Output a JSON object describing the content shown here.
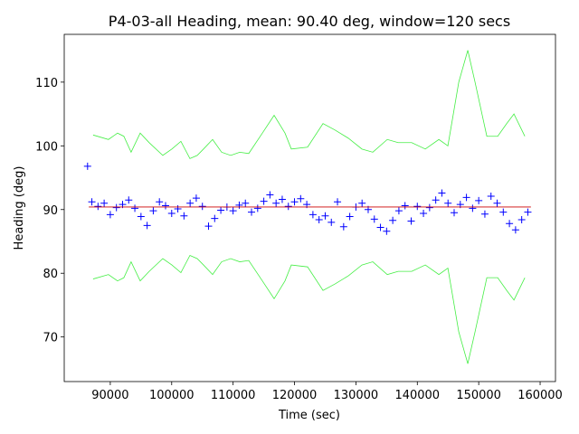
{
  "chart_data": {
    "type": "scatter",
    "title": "P4-03-all Heading, mean: 90.40 deg, window=120 secs",
    "xlabel": "Time (sec)",
    "ylabel": "Heading (deg)",
    "xlim": [
      82500,
      162500
    ],
    "ylim": [
      63,
      117.5
    ],
    "xticks": [
      90000,
      100000,
      110000,
      120000,
      130000,
      140000,
      150000,
      160000
    ],
    "yticks": [
      70,
      80,
      90,
      100,
      110
    ],
    "grid": false,
    "series": [
      {
        "style": "plus",
        "color": "#0000ff",
        "x": [
          86300,
          87000,
          88000,
          89000,
          90000,
          91000,
          92000,
          93000,
          94000,
          95000,
          96000,
          97000,
          98000,
          99000,
          100000,
          101000,
          102000,
          103000,
          104000,
          105000,
          106000,
          107000,
          108000,
          109000,
          110000,
          111000,
          112000,
          113000,
          114000,
          115000,
          116000,
          117000,
          118000,
          119000,
          120000,
          121000,
          122000,
          123000,
          124000,
          125000,
          126000,
          127000,
          128000,
          129000,
          130000,
          131000,
          132000,
          133000,
          134000,
          135000,
          136000,
          137000,
          138000,
          139000,
          140000,
          141000,
          142000,
          143000,
          144000,
          145000,
          146000,
          147000,
          148000,
          149000,
          150000,
          151000,
          152000,
          153000,
          154000,
          155000,
          156000,
          157000,
          158000
        ],
        "values": [
          96.8,
          91.2,
          90.5,
          91.0,
          89.2,
          90.3,
          90.8,
          91.5,
          90.2,
          88.9,
          87.5,
          89.8,
          91.2,
          90.6,
          89.4,
          90.1,
          89.0,
          91.0,
          91.8,
          90.5,
          87.4,
          88.6,
          89.9,
          90.4,
          89.8,
          90.7,
          91.0,
          89.6,
          90.2,
          91.3,
          92.3,
          91.0,
          91.6,
          90.5,
          91.2,
          91.7,
          90.8,
          89.2,
          88.4,
          89.0,
          88.0,
          91.2,
          87.3,
          88.9,
          90.4,
          91.0,
          90.0,
          88.5,
          87.2,
          86.6,
          88.3,
          89.8,
          90.6,
          88.2,
          90.5,
          89.4,
          90.3,
          91.5,
          92.6,
          91.0,
          89.5,
          90.8,
          91.9,
          90.2,
          91.4,
          89.3,
          92.1,
          91.0,
          89.6,
          87.8,
          86.8,
          88.4,
          89.6
        ]
      },
      {
        "style": "line",
        "color": "#cc0000",
        "x": [
          86500,
          158500
        ],
        "values": [
          90.4,
          90.4
        ]
      },
      {
        "style": "line",
        "color": "#44ee44",
        "x": [
          87200,
          89700,
          91180,
          92210,
          93390,
          94870,
          96340,
          98550,
          100030,
          101500,
          102970,
          104150,
          105180,
          106660,
          108130,
          109610,
          111080,
          112550,
          114770,
          116680,
          118450,
          119480,
          122130,
          124640,
          126560,
          128770,
          130980,
          132750,
          135110,
          136880,
          139090,
          141300,
          143510,
          144980,
          146750,
          148220,
          149400,
          151320,
          153090,
          154560,
          155740,
          157510
        ],
        "values": [
          101.7,
          101.0,
          102.0,
          101.5,
          99.0,
          102.0,
          100.5,
          98.5,
          99.5,
          100.7,
          98.0,
          98.5,
          99.5,
          101.0,
          99.0,
          98.5,
          99.0,
          98.8,
          102.0,
          104.8,
          102.0,
          99.5,
          99.8,
          103.5,
          102.5,
          101.2,
          99.5,
          99.0,
          101.0,
          100.5,
          100.5,
          99.5,
          101.0,
          100.0,
          110.0,
          115.0,
          110.0,
          101.5,
          101.5,
          103.5,
          105.0,
          101.5
        ]
      },
      {
        "style": "line",
        "color": "#44ee44",
        "x": [
          87200,
          89700,
          91180,
          92210,
          93390,
          94870,
          96340,
          98550,
          100030,
          101500,
          102970,
          104150,
          105180,
          106660,
          108130,
          109610,
          111080,
          112550,
          114770,
          116680,
          118450,
          119480,
          122130,
          124640,
          126560,
          128770,
          130980,
          132750,
          135110,
          136880,
          139090,
          141300,
          143510,
          144980,
          146750,
          148220,
          149400,
          151320,
          153090,
          154560,
          155740,
          157510
        ],
        "values": [
          79.1,
          79.8,
          78.8,
          79.3,
          81.8,
          78.8,
          80.3,
          82.3,
          81.3,
          80.1,
          82.8,
          82.3,
          81.3,
          79.8,
          81.8,
          82.3,
          81.8,
          82.0,
          78.8,
          76.0,
          78.8,
          81.3,
          81.0,
          77.3,
          78.3,
          79.6,
          81.3,
          81.8,
          79.8,
          80.3,
          80.3,
          81.3,
          79.8,
          80.8,
          70.8,
          65.8,
          70.8,
          79.3,
          79.3,
          77.3,
          75.8,
          79.3
        ]
      }
    ]
  }
}
